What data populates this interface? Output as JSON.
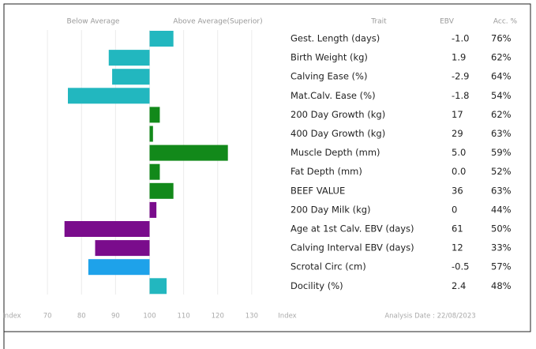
{
  "chart_data": {
    "type": "bar",
    "orientation": "horizontal",
    "left_label": "Below Average",
    "right_label": "Above Average(Superior)",
    "x_label": "Index",
    "xlim": [
      60,
      140
    ],
    "xticks": [
      70,
      80,
      90,
      100,
      110,
      120,
      130
    ],
    "baseline": 100,
    "grid": true,
    "categories": [
      "Gest. Length (days)",
      "Birth Weight (kg)",
      "Calving Ease (%)",
      "Mat.Calv. Ease (%)",
      "200 Day Growth (kg)",
      "400 Day Growth (kg)",
      "Muscle Depth (mm)",
      "Fat Depth (mm)",
      "BEEF VALUE",
      "200 Day Milk (kg)",
      "Age at 1st Calv. EBV (days)",
      "Calving Interval EBV (days)",
      "Scrotal Circ (cm)",
      "Docility (%)"
    ],
    "values": [
      107,
      88,
      89,
      76,
      103,
      101,
      123,
      103,
      107,
      102,
      75,
      84,
      82,
      105
    ],
    "colors": [
      "#22b7bf",
      "#22b7bf",
      "#22b7bf",
      "#22b7bf",
      "#12891a",
      "#12891a",
      "#12891a",
      "#12891a",
      "#12891a",
      "#7a0c8c",
      "#7a0c8c",
      "#7a0c8c",
      "#1ea2ea",
      "#22b7bf"
    ]
  },
  "table": {
    "headers": [
      "Trait",
      "EBV",
      "Acc. %"
    ],
    "ebv": [
      "-1.0",
      "1.9",
      "-2.9",
      "-1.8",
      "17",
      "29",
      "5.0",
      "0.0",
      "36",
      "0",
      "61",
      "12",
      "-0.5",
      "2.4"
    ],
    "acc": [
      "76%",
      "62%",
      "64%",
      "54%",
      "62%",
      "63%",
      "59%",
      "52%",
      "63%",
      "44%",
      "50%",
      "33%",
      "57%",
      "48%"
    ]
  },
  "footer": {
    "analysis_date": "Analysis Date : 22/08/2023"
  }
}
